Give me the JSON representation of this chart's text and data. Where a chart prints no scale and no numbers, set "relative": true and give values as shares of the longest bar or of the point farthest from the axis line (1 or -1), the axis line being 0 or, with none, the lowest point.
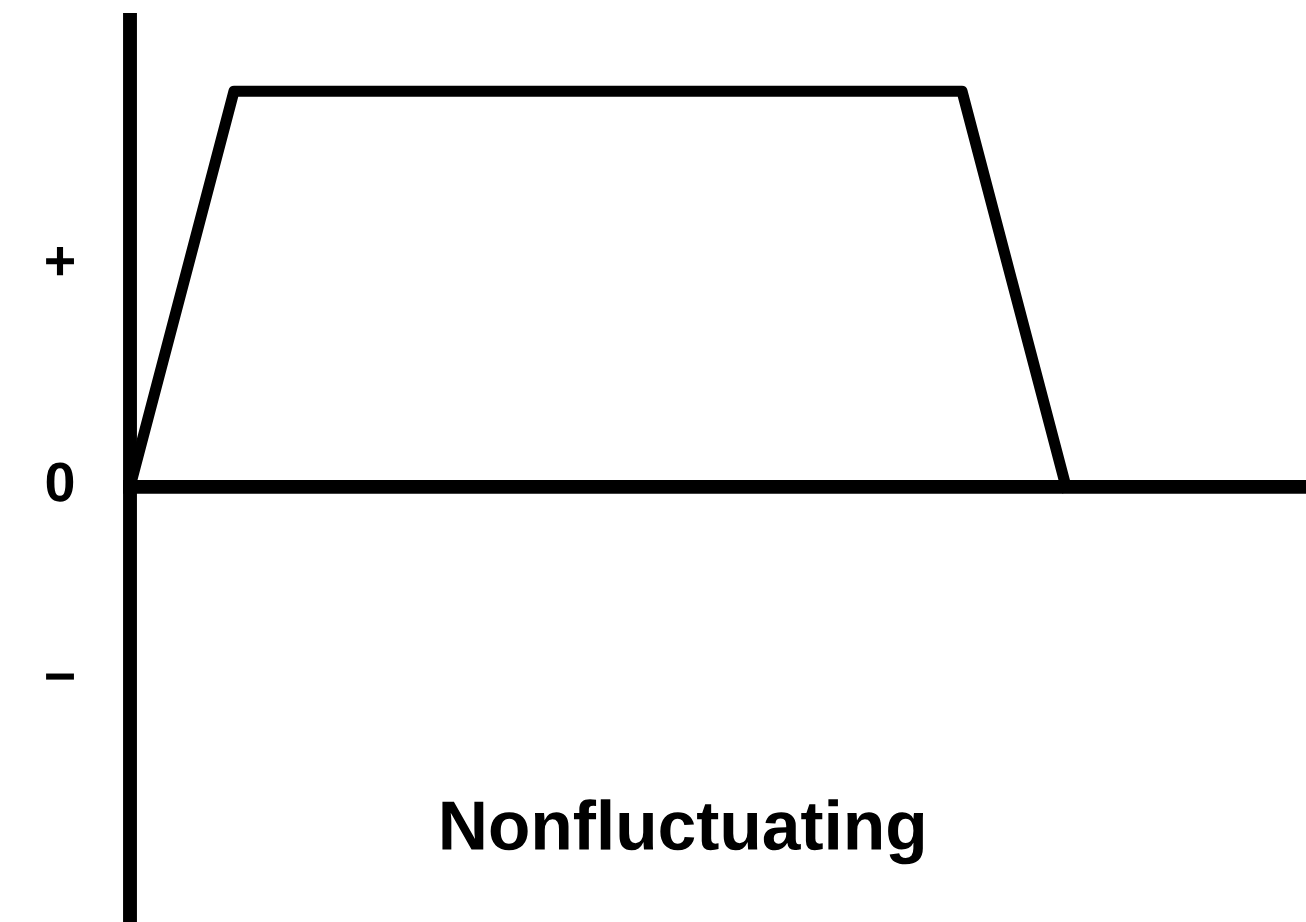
{
  "chart_data": {
    "type": "line",
    "relative": true,
    "title": "Nonfluctuating",
    "categories": [
      null,
      null,
      null,
      null,
      null,
      null,
      null,
      null,
      null,
      null
    ],
    "values": [
      0,
      1,
      1,
      1,
      1,
      1,
      1,
      1,
      1,
      0
    ],
    "color": "#000000",
    "marker": "none",
    "line_style": "solid",
    "annotations": [
      "+",
      "0",
      "−"
    ]
  }
}
